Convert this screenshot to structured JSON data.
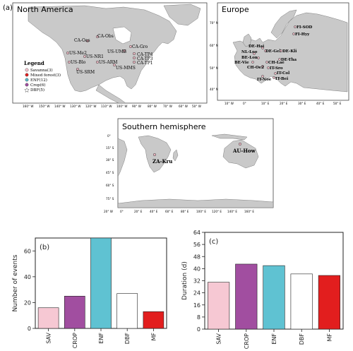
{
  "panel_a_label": "(a)",
  "maps": [
    {
      "title": "North America",
      "legend": {
        "title": "Legend",
        "items": [
          {
            "label": "Savanna(3)",
            "color": "#f4c4cf",
            "shape": "circle"
          },
          {
            "label": "Mixed forest(3)",
            "color": "#e02020",
            "shape": "circle"
          },
          {
            "label": "ENF(12)",
            "color": "#56b8c8",
            "shape": "circle"
          },
          {
            "label": "Crop(6)",
            "color": "#a04fa0",
            "shape": "circle"
          },
          {
            "label": "DBF(5)",
            "color": "#ffffff",
            "shape": "star"
          }
        ]
      },
      "sites": [
        "CA-Oas",
        "CA-Obs",
        "CA-Gro",
        "US-Me2",
        "US-NR1",
        "US-UMB",
        "CA-TP4",
        "CA-TP3",
        "US-Blo",
        "US-ARM",
        "CA-TP1",
        "US-MMS",
        "US-SRM"
      ],
      "lon_ticks": [
        "160° W",
        "150° W",
        "140° W",
        "130° W",
        "120° W",
        "110° W",
        "100° W",
        "90° W",
        "80° W",
        "70° W",
        "60° W",
        "50° W"
      ]
    },
    {
      "title": "Europe",
      "sites": [
        "FI-SOD",
        "FI-Hyy",
        "DE-Hai",
        "DE-Geb",
        "DE-Kli",
        "NL-Loo",
        "BE-Lon",
        "DE-Tha",
        "BE-Vie",
        "CH-Lae",
        "CH-Oe2",
        "IT-Sro",
        "IT-Col",
        "IT-Noe",
        "IT-Bei"
      ],
      "lat_ticks": [
        "70° N",
        "60° N",
        "50° N",
        "40° N"
      ],
      "lon_ticks": [
        "10° W",
        "0°",
        "10° E",
        "20° E",
        "30° E",
        "40° E",
        "50° E"
      ]
    },
    {
      "title": "Southern hemisphere",
      "sites": [
        "ZA-Kru",
        "AU-How"
      ],
      "lat_ticks": [
        "0°",
        "15° S",
        "30° S",
        "45° S",
        "60° S",
        "75° S"
      ],
      "lon_ticks": [
        "20° W",
        "0°",
        "20° E",
        "40° E",
        "60° E",
        "80° E",
        "100° E",
        "120° E",
        "140° E",
        "160° E"
      ]
    }
  ],
  "chart_data": [
    {
      "type": "bar",
      "panel": "(b)",
      "categories": [
        "SAV",
        "CROP",
        "ENF",
        "DBF",
        "MF"
      ],
      "values": [
        16,
        25,
        70,
        27,
        13
      ],
      "colors": [
        "#f6c8d3",
        "#a14ea0",
        "#5fc2d2",
        "#ffffff",
        "#e21e1e"
      ],
      "xlabel": "",
      "ylabel": "Number of events",
      "ylim": [
        0,
        70
      ],
      "yticks": [
        0,
        20,
        40,
        60
      ]
    },
    {
      "type": "bar",
      "panel": "(c)",
      "categories": [
        "SAV",
        "CROP",
        "ENF",
        "DBF",
        "MF"
      ],
      "values": [
        31,
        43,
        42,
        36.5,
        35.5
      ],
      "colors": [
        "#f6c8d3",
        "#a14ea0",
        "#5fc2d2",
        "#ffffff",
        "#e21e1e"
      ],
      "xlabel": "",
      "ylabel": "Duration (d)",
      "ylim": [
        0,
        64
      ],
      "yticks": [
        0,
        8,
        16,
        24,
        32,
        40,
        48,
        56,
        64
      ]
    }
  ]
}
